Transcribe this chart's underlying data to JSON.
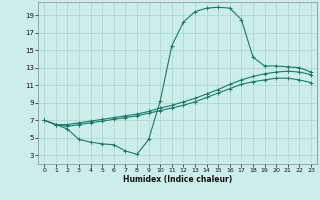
{
  "xlabel": "Humidex (Indice chaleur)",
  "ylabel": "",
  "bg_color": "#cceeea",
  "grid_color": "#aad4ce",
  "line_color": "#1a7a6a",
  "xlim": [
    -0.5,
    23.5
  ],
  "ylim": [
    2.0,
    20.5
  ],
  "xticks": [
    0,
    1,
    2,
    3,
    4,
    5,
    6,
    7,
    8,
    9,
    10,
    11,
    12,
    13,
    14,
    15,
    16,
    17,
    18,
    19,
    20,
    21,
    22,
    23
  ],
  "yticks": [
    3,
    5,
    7,
    9,
    11,
    13,
    15,
    17,
    19
  ],
  "line1_x": [
    0,
    1,
    2,
    3,
    4,
    5,
    6,
    7,
    8,
    9,
    10,
    11,
    12,
    13,
    14,
    15,
    16,
    17,
    18,
    19,
    20,
    21,
    22,
    23
  ],
  "line1_y": [
    7.0,
    6.5,
    6.0,
    4.8,
    4.5,
    4.3,
    4.2,
    3.5,
    3.1,
    4.8,
    9.2,
    15.5,
    18.2,
    19.4,
    19.8,
    19.9,
    19.8,
    18.5,
    14.2,
    13.2,
    13.2,
    13.1,
    13.0,
    12.5
  ],
  "line2_x": [
    0,
    1,
    2,
    3,
    4,
    5,
    6,
    7,
    8,
    9,
    10,
    11,
    12,
    13,
    14,
    15,
    16,
    17,
    18,
    19,
    20,
    21,
    22,
    23
  ],
  "line2_y": [
    7.0,
    6.5,
    6.5,
    6.7,
    6.9,
    7.1,
    7.3,
    7.5,
    7.7,
    8.0,
    8.4,
    8.7,
    9.1,
    9.5,
    10.0,
    10.5,
    11.1,
    11.6,
    12.0,
    12.3,
    12.5,
    12.6,
    12.5,
    12.2
  ],
  "line3_x": [
    0,
    1,
    2,
    3,
    4,
    5,
    6,
    7,
    8,
    9,
    10,
    11,
    12,
    13,
    14,
    15,
    16,
    17,
    18,
    19,
    20,
    21,
    22,
    23
  ],
  "line3_y": [
    7.0,
    6.5,
    6.3,
    6.5,
    6.7,
    6.9,
    7.1,
    7.3,
    7.5,
    7.8,
    8.1,
    8.4,
    8.7,
    9.1,
    9.6,
    10.1,
    10.6,
    11.1,
    11.4,
    11.6,
    11.8,
    11.8,
    11.6,
    11.3
  ]
}
